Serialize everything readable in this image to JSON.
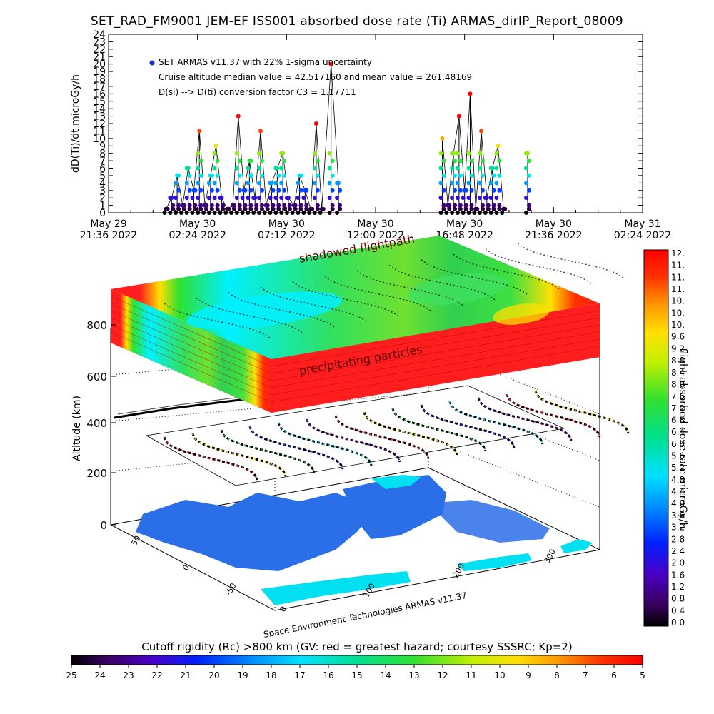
{
  "title": "SET_RAD_FM9001  JEM-EF ISS001 absorbed dose rate (Ti) ARMAS_dirIP_Report_08009",
  "annotations": [
    "SET ARMAS v11.37 with 22% 1-sigma uncertainty",
    "Cruise altitude median value = 42.517160 and mean value = 261.48169",
    "D(si) --> D(ti) conversion factor C3 = 1.17711"
  ],
  "chart_data": [
    {
      "type": "scatter",
      "ylabel": "dD(Ti)/dt microGy/h",
      "ylim": [
        0,
        24
      ],
      "yticks": [
        "0",
        "1",
        "2",
        "3",
        "4",
        "5",
        "6",
        "7",
        "8",
        "9",
        "10",
        "11",
        "12",
        "13",
        "14",
        "15",
        "16",
        "17",
        "18",
        "19",
        "20",
        "21",
        "22",
        "23",
        "24"
      ],
      "xticks": [
        {
          "l1": "May 29",
          "l2": "21:36 2022"
        },
        {
          "l1": "May 30",
          "l2": "02:24 2022"
        },
        {
          "l1": "May 30",
          "l2": "07:12 2022"
        },
        {
          "l1": "May 30",
          "l2": "12:00 2022"
        },
        {
          "l1": "May 30",
          "l2": "16:48 2022"
        },
        {
          "l1": "May 30",
          "l2": "21:36 2022"
        },
        {
          "l1": "May 31",
          "l2": "02:24 2022"
        }
      ],
      "xlim_hours": [
        0,
        28.8
      ],
      "x_hours": [
        3.1,
        3.4,
        3.7,
        4.0,
        4.3,
        4.6,
        4.9,
        5.2,
        5.5,
        5.8,
        6.1,
        6.4,
        6.7,
        7.0,
        7.3,
        7.6,
        7.9,
        8.2,
        8.5,
        8.8,
        9.1,
        9.4,
        9.7,
        10.0,
        10.3,
        10.6,
        10.9,
        11.2,
        11.5,
        12.0,
        12.4,
        18.0,
        18.3,
        18.6,
        18.9,
        19.2,
        19.5,
        19.8,
        20.1,
        20.4,
        20.7,
        21.0,
        21.3,
        22.6
      ],
      "y_values": [
        0.5,
        2,
        5,
        1,
        6,
        3,
        11,
        1,
        5,
        9,
        2,
        0.5,
        1,
        13,
        3,
        7,
        2,
        11,
        1,
        4,
        6,
        8,
        2,
        1,
        5,
        3,
        0.5,
        12,
        0.5,
        20,
        4,
        10,
        1,
        8,
        13,
        3,
        16,
        0.5,
        11,
        2,
        6,
        9,
        0.5,
        8
      ]
    },
    {
      "type": "heatmap",
      "zlabel": "Altitude (km)",
      "zticks": [
        "0",
        "200",
        "400",
        "600",
        "800"
      ],
      "xticks": [
        "0",
        "100",
        "200",
        "300"
      ],
      "yticks": [
        "-50",
        "0",
        "50"
      ],
      "labels": [
        "shadowed flightpath",
        "precipitating particles"
      ],
      "credit": "Space Environment Technologies ARMAS v11.37",
      "colorbar_label": "flight absorbed dose rate microGy/h",
      "colorbar_ticks": [
        "12.",
        "11.",
        "11.",
        "11.",
        "10.",
        "10.",
        "10.",
        "9.6",
        "9.2",
        "8.8",
        "8.4",
        "8.0",
        "7.6",
        "7.2",
        "6.8",
        "6.4",
        "6.0",
        "5.6",
        "5.2",
        "4.8",
        "4.4",
        "4.0",
        "3.6",
        "3.2",
        "2.8",
        "2.4",
        "2.0",
        "1.6",
        "1.2",
        "0.8",
        "0.4",
        "0.0"
      ]
    },
    {
      "type": "heatmap",
      "title": "Cutoff rigidity (Rc) >800 km (GV: red = greatest hazard; courtesy SSSRC; Kp=2)",
      "ticks": [
        "25",
        "24",
        "23",
        "22",
        "21",
        "20",
        "19",
        "18",
        "17",
        "16",
        "15",
        "14",
        "13",
        "12",
        "11",
        "10",
        "9",
        "8",
        "7",
        "6",
        "5"
      ]
    }
  ],
  "colors": {
    "ocean": "#2a6fe8",
    "land": "#ffffff",
    "hazard_red": "#ff1e1e",
    "low_cyan": "#00e8ff"
  }
}
